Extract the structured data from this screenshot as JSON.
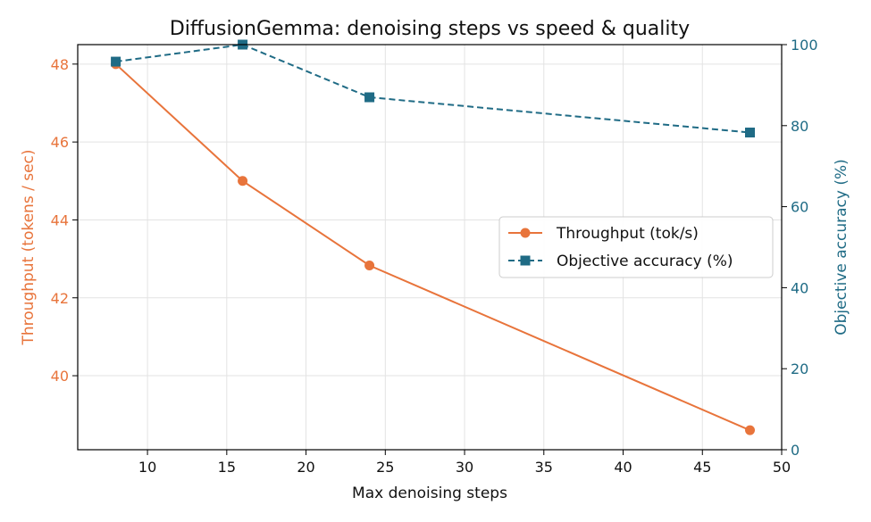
{
  "chart_data": {
    "type": "line",
    "title": "DiffusionGemma: denoising steps vs speed & quality",
    "xlabel": "Max denoising steps",
    "ylabel_left": "Throughput (tokens / sec)",
    "ylabel_right": "Objective accuracy (%)",
    "xlim": [
      5.6,
      50
    ],
    "ylim_left": [
      38.1,
      48.5
    ],
    "ylim_right": [
      0,
      100
    ],
    "x_ticks": [
      10,
      15,
      20,
      25,
      30,
      35,
      40,
      45,
      50
    ],
    "y_ticks_left": [
      40,
      42,
      44,
      46,
      48
    ],
    "y_ticks_right": [
      0,
      20,
      40,
      60,
      80,
      100
    ],
    "grid": true,
    "legend_position": "center-right",
    "x": [
      8,
      16,
      24,
      48
    ],
    "series": [
      {
        "name": "Throughput (tok/s)",
        "axis": "left",
        "values": [
          48.0,
          45.0,
          42.83,
          38.6
        ],
        "color": "#E8743B",
        "marker": "circle",
        "linestyle": "solid"
      },
      {
        "name": "Objective accuracy (%)",
        "axis": "right",
        "values": [
          95.8,
          100.0,
          87.0,
          78.3
        ],
        "color": "#1F6B85",
        "marker": "square",
        "linestyle": "dashed"
      }
    ]
  }
}
